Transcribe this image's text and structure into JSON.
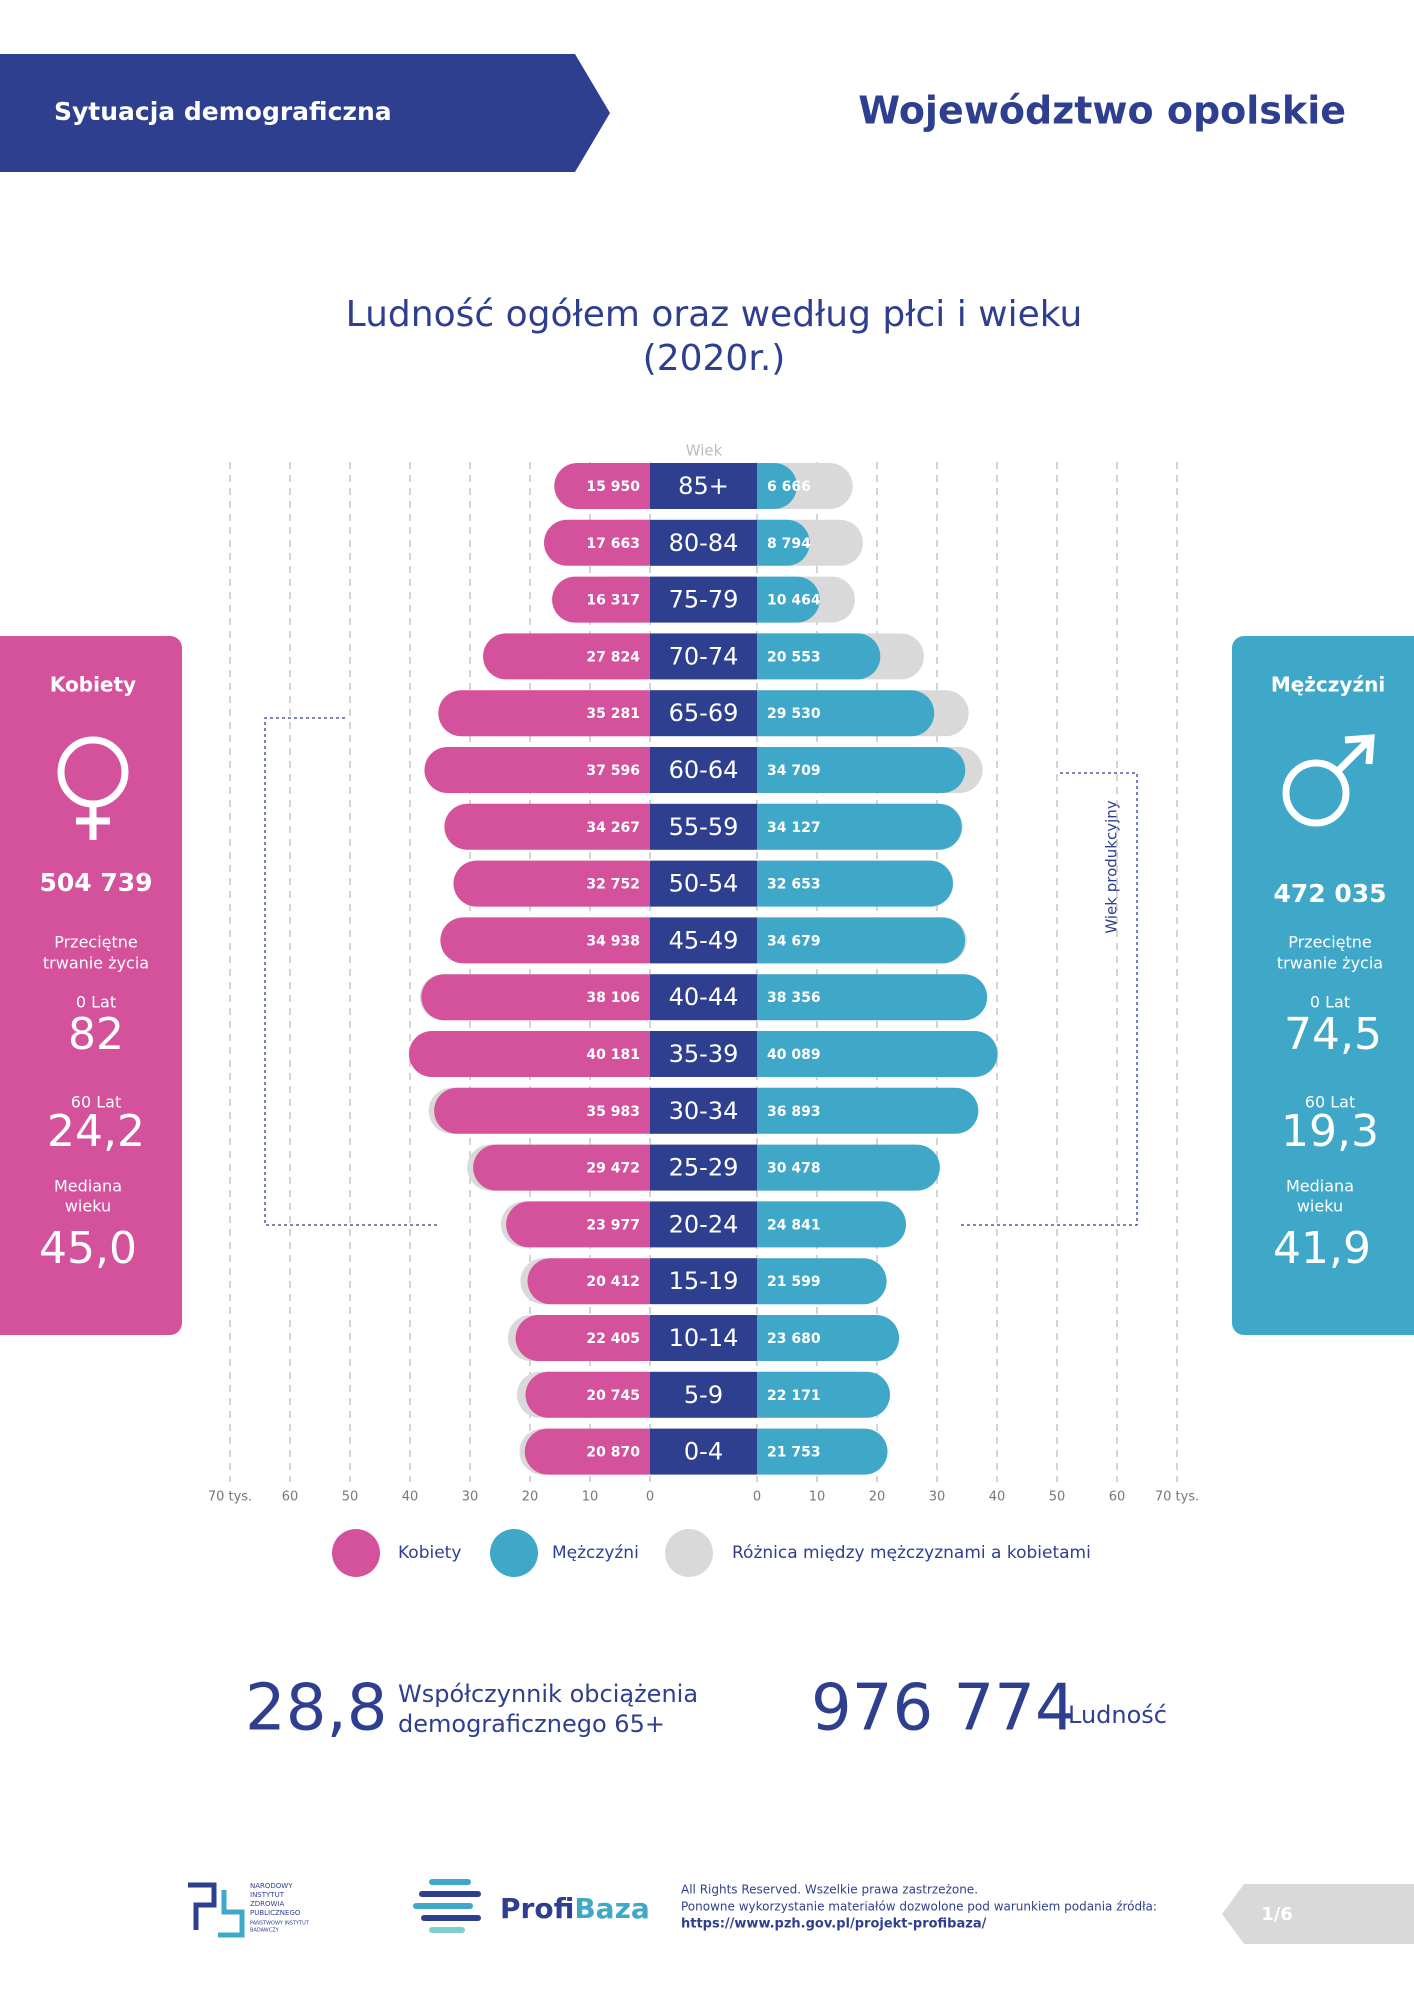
{
  "header": {
    "section": "Sytuacja demograficzna",
    "region": "Województwo opolskie"
  },
  "chart_data": {
    "type": "pyramid",
    "title": "Ludność ogółem oraz według płci i wieku",
    "subtitle": "(2020r.)",
    "axis_label": "Wiek",
    "bracket_label": "Wiek produkcyjny",
    "categories": [
      "85+",
      "80-84",
      "75-79",
      "70-74",
      "65-69",
      "60-64",
      "55-59",
      "50-54",
      "45-49",
      "40-44",
      "35-39",
      "30-34",
      "25-29",
      "20-24",
      "15-19",
      "10-14",
      "5-9",
      "0-4"
    ],
    "series": [
      {
        "name": "Kobiety",
        "color": "#d4519c",
        "values": [
          15.95,
          17.663,
          16.317,
          27.824,
          35.281,
          37.596,
          34.267,
          32.752,
          34.938,
          38.106,
          40.181,
          35.983,
          29.472,
          23.977,
          20.412,
          22.405,
          20.745,
          20.87
        ],
        "value_labels": [
          "15 950",
          "17 663",
          "16 317",
          "27 824",
          "35 281",
          "37 596",
          "34 267",
          "32 752",
          "34 938",
          "38 106",
          "40 181",
          "35 983",
          "29 472",
          "23 977",
          "20 412",
          "22 405",
          "20 745",
          "20 870"
        ]
      },
      {
        "name": "Mężczyźni",
        "color": "#3fa8c8",
        "values": [
          6.666,
          8.794,
          10.464,
          20.553,
          29.53,
          34.709,
          34.127,
          32.653,
          34.679,
          38.356,
          40.089,
          36.893,
          30.478,
          24.841,
          21.599,
          23.68,
          22.171,
          21.753
        ],
        "value_labels": [
          "6 666",
          "8 794",
          "10 464",
          "20 553",
          "29 530",
          "34 709",
          "34 127",
          "32 653",
          "34 679",
          "38 356",
          "40 089",
          "36 893",
          "30 478",
          "24 841",
          "21 599",
          "23 680",
          "22 171",
          "21 753"
        ]
      }
    ],
    "difference": {
      "name": "Różnica między mężczyznami a kobietami",
      "color": "#d9d9d9"
    },
    "xlim": [
      0,
      70
    ],
    "xticks": [
      0,
      10,
      20,
      30,
      40,
      50,
      60,
      {
        "value": 70,
        "label": "70 tys."
      }
    ],
    "grid": true
  },
  "panels": [
    {
      "title": "Kobiety",
      "total": "504 739",
      "life_label": [
        "Przeciętne",
        "trwanie życia"
      ],
      "at0_label": "0 Lat",
      "at0": "82",
      "at60_label": "60 Lat",
      "at60": "24,2",
      "median_label": [
        "Mediana",
        "wieku"
      ],
      "median": "45,0"
    },
    {
      "title": "Mężczyźni",
      "total": "472 035",
      "life_label": [
        "Przeciętne",
        "trwanie życia"
      ],
      "at0_label": "0 Lat",
      "at0": "74,5",
      "at60_label": "60 Lat",
      "at60": "19,3",
      "median_label": [
        "Mediana",
        "wieku"
      ],
      "median": "41,9"
    }
  ],
  "stats": [
    {
      "value": "28,8",
      "label": [
        "Współczynnik obciążenia",
        "demograficznego 65+"
      ]
    },
    {
      "value": "976 774",
      "label": [
        "Ludność"
      ]
    }
  ],
  "footer": {
    "institute": [
      "NARODOWY",
      "INSTYTUT",
      "ZDROWIA",
      "PUBLICZNEGO",
      "PAŃSTWOWY INSTYTUT",
      "BADAWCZY"
    ],
    "brand": [
      "Profi",
      "Baza"
    ],
    "notice": [
      "All Rights Reserved. Wszelkie prawa zastrzeżone.",
      "Ponowne wykorzystanie materiałów dozwolone pod warunkiem podania źródła:",
      "https://www.pzh.gov.pl/projekt-profibaza/"
    ],
    "page": "1/6"
  }
}
